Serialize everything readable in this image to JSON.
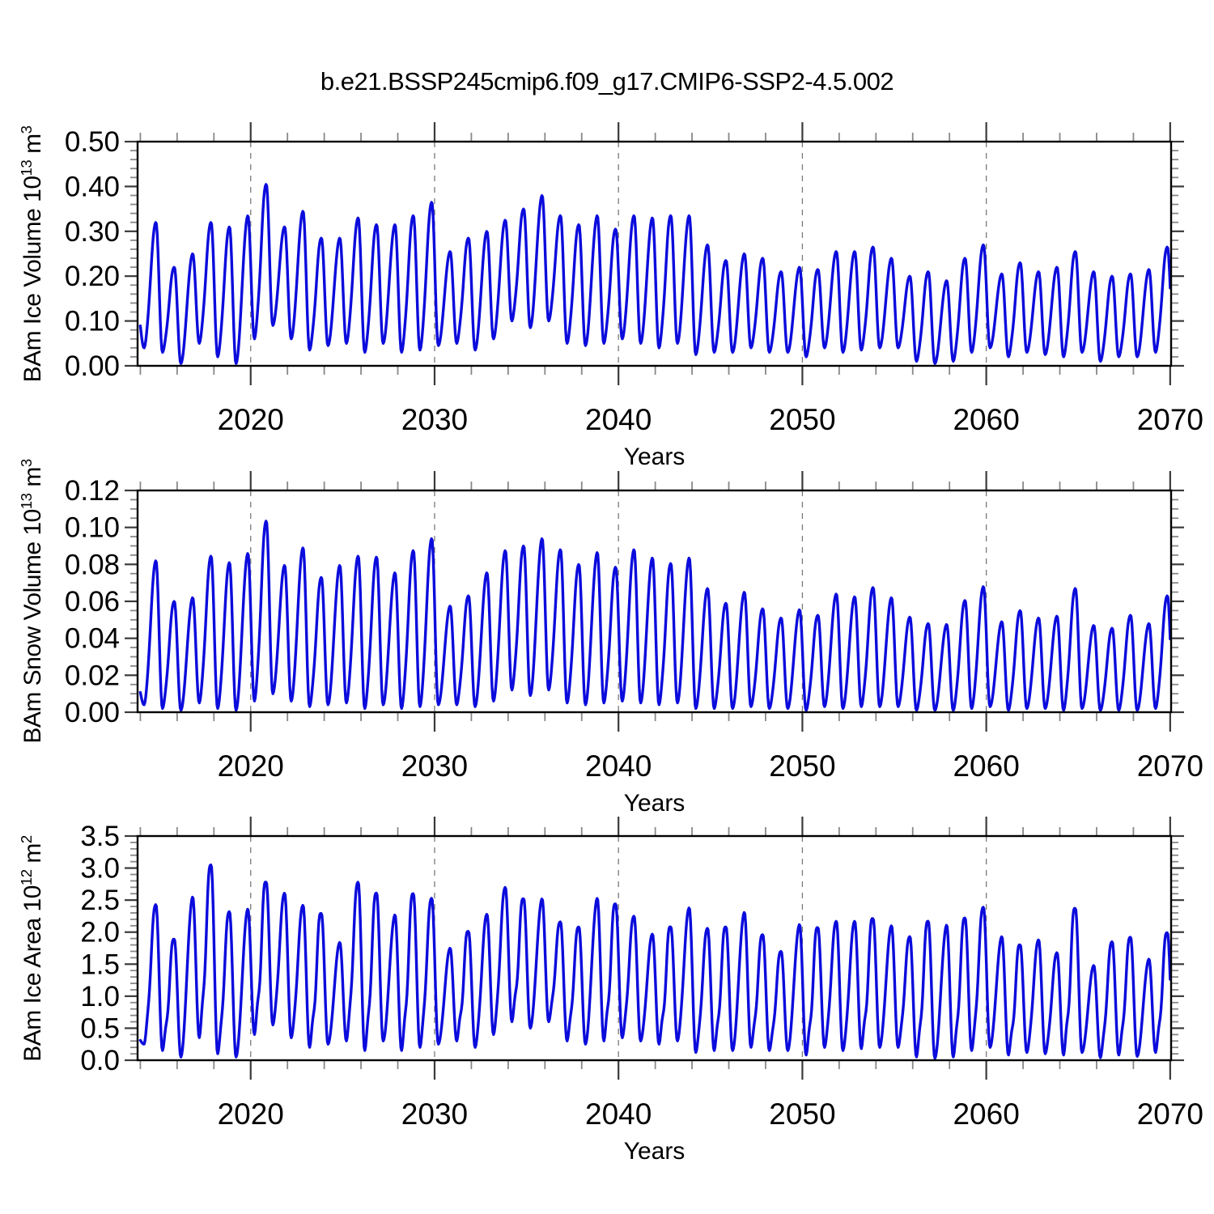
{
  "title": "b.e21.BSSP245cmip6.f09_g17.CMIP6-SSP2-4.5.002",
  "style": {
    "background": "#ffffff",
    "line_color": "#0b0bdc",
    "line_width": 3.4,
    "frame_color": "#000000",
    "major_tick_color": "#3a3a3a",
    "minor_tick_color": "#888888",
    "grid_color": "#7a7a7a",
    "label_color": "#000000"
  },
  "chart_data": [
    {
      "id": "ice_volume",
      "type": "line",
      "ylabel_markup": "BAm Ice Volume 10^13^ m^3^",
      "xlabel": "Years",
      "xlim": [
        2013.85,
        2070.05
      ],
      "xtick_values": [
        2020,
        2030,
        2040,
        2050,
        2060,
        2070
      ],
      "xtick_labels": [
        "2020",
        "2030",
        "2040",
        "2050",
        "2060",
        "2070"
      ],
      "x_minor_step": 2,
      "grid_x": [
        2020,
        2030,
        2040,
        2050,
        2060
      ],
      "ylim": [
        0.0,
        0.5
      ],
      "ytick_values": [
        0.0,
        0.1,
        0.2,
        0.3,
        0.4,
        0.5
      ],
      "ytick_labels": [
        "0.00",
        "0.10",
        "0.20",
        "0.30",
        "0.40",
        "0.50"
      ],
      "y_minor_step": 0.02,
      "series": {
        "seasonality": "annual cycle, maximum ~September, minimum ~February",
        "years_start": 2014,
        "peak_phase": 0.85,
        "trough_phase": 0.2,
        "shoulder_amp": 0.03,
        "peak_2013": 0.12,
        "end_trough": 0.03,
        "annual_peak": [
          0.32,
          0.22,
          0.25,
          0.32,
          0.31,
          0.335,
          0.405,
          0.31,
          0.345,
          0.285,
          0.285,
          0.33,
          0.315,
          0.315,
          0.335,
          0.365,
          0.255,
          0.285,
          0.3,
          0.325,
          0.35,
          0.38,
          0.335,
          0.315,
          0.335,
          0.305,
          0.335,
          0.33,
          0.335,
          0.335,
          0.27,
          0.235,
          0.25,
          0.24,
          0.21,
          0.22,
          0.215,
          0.255,
          0.255,
          0.265,
          0.24,
          0.2,
          0.21,
          0.19,
          0.24,
          0.27,
          0.205,
          0.23,
          0.21,
          0.22,
          0.255,
          0.21,
          0.2,
          0.205,
          0.215,
          0.265
        ],
        "annual_trough": [
          0.04,
          0.03,
          0.005,
          0.05,
          0.02,
          0.005,
          0.06,
          0.09,
          0.06,
          0.035,
          0.045,
          0.05,
          0.03,
          0.05,
          0.03,
          0.035,
          0.045,
          0.05,
          0.035,
          0.06,
          0.1,
          0.085,
          0.1,
          0.05,
          0.045,
          0.05,
          0.06,
          0.05,
          0.04,
          0.05,
          0.025,
          0.03,
          0.03,
          0.04,
          0.03,
          0.03,
          0.02,
          0.04,
          0.03,
          0.035,
          0.04,
          0.04,
          0.01,
          0.005,
          0.01,
          0.03,
          0.04,
          0.02,
          0.03,
          0.025,
          0.02,
          0.03,
          0.01,
          0.02,
          0.02,
          0.03
        ]
      }
    },
    {
      "id": "snow_volume",
      "type": "line",
      "ylabel_markup": "BAm Snow Volume 10^13^ m^3^",
      "xlabel": "Years",
      "xlim": [
        2013.85,
        2070.05
      ],
      "xtick_values": [
        2020,
        2030,
        2040,
        2050,
        2060,
        2070
      ],
      "xtick_labels": [
        "2020",
        "2030",
        "2040",
        "2050",
        "2060",
        "2070"
      ],
      "x_minor_step": 2,
      "grid_x": [
        2020,
        2030,
        2040,
        2050,
        2060
      ],
      "ylim": [
        0.0,
        0.12
      ],
      "ytick_values": [
        0.0,
        0.02,
        0.04,
        0.06,
        0.08,
        0.1,
        0.12
      ],
      "ytick_labels": [
        "0.00",
        "0.02",
        "0.04",
        "0.06",
        "0.08",
        "0.10",
        "0.12"
      ],
      "y_minor_step": 0.005,
      "series": {
        "seasonality": "annual cycle, maximum ~September, minimum ~February",
        "years_start": 2014,
        "peak_phase": 0.85,
        "trough_phase": 0.2,
        "shoulder_amp": 0.03,
        "peak_2013": 0.015,
        "end_trough": 0.003,
        "annual_peak": [
          0.082,
          0.06,
          0.062,
          0.0845,
          0.081,
          0.086,
          0.1035,
          0.0795,
          0.089,
          0.073,
          0.0795,
          0.0845,
          0.084,
          0.0755,
          0.0875,
          0.094,
          0.0575,
          0.063,
          0.0755,
          0.0875,
          0.09,
          0.094,
          0.088,
          0.08,
          0.0865,
          0.0785,
          0.088,
          0.0835,
          0.0805,
          0.0835,
          0.067,
          0.059,
          0.065,
          0.056,
          0.051,
          0.0555,
          0.0525,
          0.064,
          0.0625,
          0.0675,
          0.062,
          0.0515,
          0.048,
          0.0475,
          0.0605,
          0.068,
          0.049,
          0.055,
          0.051,
          0.052,
          0.067,
          0.047,
          0.0455,
          0.0525,
          0.048,
          0.063
        ],
        "annual_trough": [
          0.004,
          0.002,
          0.001,
          0.005,
          0.002,
          0.001,
          0.006,
          0.01,
          0.006,
          0.003,
          0.004,
          0.005,
          0.002,
          0.004,
          0.002,
          0.003,
          0.004,
          0.004,
          0.003,
          0.006,
          0.012,
          0.009,
          0.012,
          0.005,
          0.004,
          0.005,
          0.006,
          0.005,
          0.004,
          0.005,
          0.002,
          0.002,
          0.002,
          0.003,
          0.002,
          0.002,
          0.001,
          0.003,
          0.002,
          0.003,
          0.003,
          0.003,
          0.001,
          0.001,
          0.001,
          0.002,
          0.003,
          0.001,
          0.002,
          0.002,
          0.001,
          0.002,
          0.001,
          0.001,
          0.001,
          0.002
        ]
      }
    },
    {
      "id": "ice_area",
      "type": "line",
      "ylabel_markup": "BAm Ice Area 10^12^ m^2^",
      "xlabel": "Years",
      "xlim": [
        2013.85,
        2070.05
      ],
      "xtick_values": [
        2020,
        2030,
        2040,
        2050,
        2060,
        2070
      ],
      "xtick_labels": [
        "2020",
        "2030",
        "2040",
        "2050",
        "2060",
        "2070"
      ],
      "x_minor_step": 2,
      "grid_x": [
        2020,
        2030,
        2040,
        2050,
        2060
      ],
      "ylim": [
        0.0,
        3.5
      ],
      "ytick_values": [
        0.0,
        0.5,
        1.0,
        1.5,
        2.0,
        2.5,
        3.0,
        3.5
      ],
      "ytick_labels": [
        "0.0",
        "0.5",
        "1.0",
        "1.5",
        "2.0",
        "2.5",
        "3.0",
        "3.5"
      ],
      "y_minor_step": 0.1,
      "series": {
        "seasonality": "annual cycle, maximum ~September, minimum ~February",
        "years_start": 2014,
        "peak_phase": 0.85,
        "trough_phase": 0.2,
        "shoulder_amp": 0.1,
        "peak_2013": 0.35,
        "end_trough": 0.12,
        "annual_peak": [
          2.43,
          1.89,
          2.55,
          3.05,
          2.32,
          2.36,
          2.78,
          2.61,
          2.42,
          2.29,
          1.84,
          2.78,
          2.61,
          2.27,
          2.6,
          2.53,
          1.75,
          2.01,
          2.28,
          2.7,
          2.52,
          2.52,
          2.16,
          2.08,
          2.53,
          2.44,
          2.25,
          1.97,
          2.08,
          2.38,
          2.06,
          2.08,
          2.31,
          1.96,
          1.7,
          2.12,
          2.07,
          2.17,
          2.17,
          2.21,
          2.1,
          1.93,
          2.17,
          2.11,
          2.22,
          2.39,
          1.93,
          1.8,
          1.88,
          1.68,
          2.37,
          1.48,
          1.85,
          1.92,
          1.58,
          1.99
        ],
        "annual_trough": [
          0.25,
          0.15,
          0.05,
          0.35,
          0.1,
          0.05,
          0.4,
          0.55,
          0.35,
          0.2,
          0.25,
          0.3,
          0.15,
          0.3,
          0.15,
          0.2,
          0.25,
          0.3,
          0.2,
          0.4,
          0.6,
          0.5,
          0.6,
          0.3,
          0.25,
          0.3,
          0.35,
          0.3,
          0.25,
          0.3,
          0.12,
          0.15,
          0.15,
          0.2,
          0.15,
          0.15,
          0.08,
          0.2,
          0.15,
          0.18,
          0.2,
          0.2,
          0.05,
          0.03,
          0.05,
          0.15,
          0.2,
          0.08,
          0.12,
          0.1,
          0.08,
          0.12,
          0.04,
          0.08,
          0.06,
          0.12
        ]
      }
    }
  ]
}
